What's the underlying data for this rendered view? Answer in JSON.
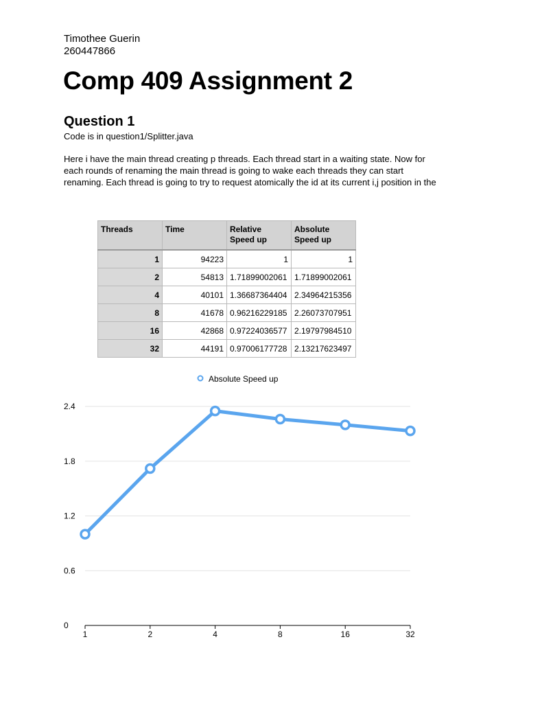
{
  "header": {
    "author_name": "Timothee Guerin",
    "student_id": "260447866",
    "title": "Comp 409 Assignment 2"
  },
  "question": {
    "heading": "Question 1",
    "code_location": "Code is in question1/Splitter.java",
    "paragraph_lines": [
      "Here i have the main thread creating p threads. Each thread start in a waiting state. Now for",
      "each rounds of renaming the main thread is going to wake each threads they can start",
      "renaming. Each thread is going to try to request atomically the id at its current i,j position in the"
    ]
  },
  "table": {
    "headers": {
      "threads": "Threads",
      "time": "Time",
      "relative_1": "Relative",
      "relative_2": "Speed up",
      "absolute_1": "Absolute",
      "absolute_2": "Speed up"
    },
    "rows": [
      {
        "threads": "1",
        "time": "94223",
        "relative": "1",
        "absolute": "1"
      },
      {
        "threads": "2",
        "time": "54813",
        "relative": "1.71899002061",
        "absolute": "1.71899002061"
      },
      {
        "threads": "4",
        "time": "40101",
        "relative": "1.36687364404",
        "absolute": "2.34964215356"
      },
      {
        "threads": "8",
        "time": "41678",
        "relative": "0.96216229185",
        "absolute": "2.26073707951"
      },
      {
        "threads": "16",
        "time": "42868",
        "relative": "0.97224036577",
        "absolute": "2.19797984510"
      },
      {
        "threads": "32",
        "time": "44191",
        "relative": "0.97006177728",
        "absolute": "2.13217623497"
      }
    ]
  },
  "chart_data": {
    "type": "line",
    "categories": [
      "1",
      "2",
      "4",
      "8",
      "16",
      "32"
    ],
    "series": [
      {
        "name": "Absolute Speed up",
        "values": [
          1,
          1.719,
          2.35,
          2.261,
          2.198,
          2.132
        ]
      }
    ],
    "ylim": [
      0,
      2.4
    ],
    "yticks": [
      "0",
      "0.6",
      "1.2",
      "1.8",
      "2.4"
    ],
    "yticks_values": [
      0,
      0.6,
      1.2,
      1.8,
      2.4
    ],
    "grid": true,
    "legend_position": "top-center",
    "series_color": "#5aa5ee"
  }
}
